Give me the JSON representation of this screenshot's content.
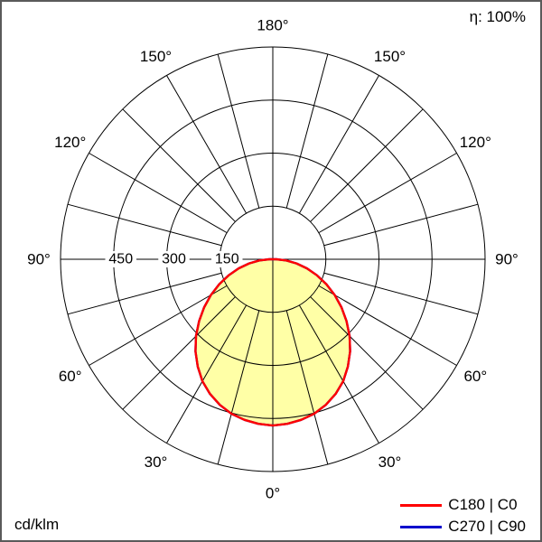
{
  "chart_data": {
    "type": "polar",
    "efficiency_label": "η: 100%",
    "unit_label": "cd/klm",
    "outer_value": 600,
    "angle_grid_step_deg": 15,
    "grid_color": "#000000",
    "ring_ticks": [
      {
        "value": 150,
        "label": "150"
      },
      {
        "value": 300,
        "label": "300"
      },
      {
        "value": 450,
        "label": "450"
      }
    ],
    "angle_ticks": [
      {
        "deg": 0,
        "label": "0°"
      },
      {
        "deg": 30,
        "label": "30°"
      },
      {
        "deg": 60,
        "label": "60°"
      },
      {
        "deg": 90,
        "label": "90°"
      },
      {
        "deg": 120,
        "label": "120°"
      },
      {
        "deg": 150,
        "label": "150°"
      },
      {
        "deg": 180,
        "label": "180°"
      }
    ],
    "series": [
      {
        "name": "C180 | C0",
        "color": "#ff0000",
        "fill": "#ffffa6",
        "gamma_deg": [
          0,
          5,
          10,
          15,
          20,
          25,
          30,
          35,
          40,
          45,
          50,
          55,
          60,
          65,
          70,
          75,
          80,
          85,
          90
        ],
        "values": [
          470,
          467,
          461,
          452,
          438,
          420,
          398,
          370,
          340,
          307,
          272,
          237,
          202,
          167,
          133,
          100,
          68,
          38,
          10
        ]
      },
      {
        "name": "C270 | C90",
        "color": "#0000cc",
        "fill": null,
        "gamma_deg": [
          0,
          5,
          10,
          15,
          20,
          25,
          30,
          35,
          40,
          45,
          50,
          55,
          60,
          65,
          70,
          75,
          80,
          85,
          90
        ],
        "values": [
          470,
          467,
          461,
          452,
          438,
          420,
          398,
          370,
          340,
          307,
          272,
          237,
          202,
          167,
          133,
          100,
          68,
          38,
          10
        ]
      }
    ]
  }
}
